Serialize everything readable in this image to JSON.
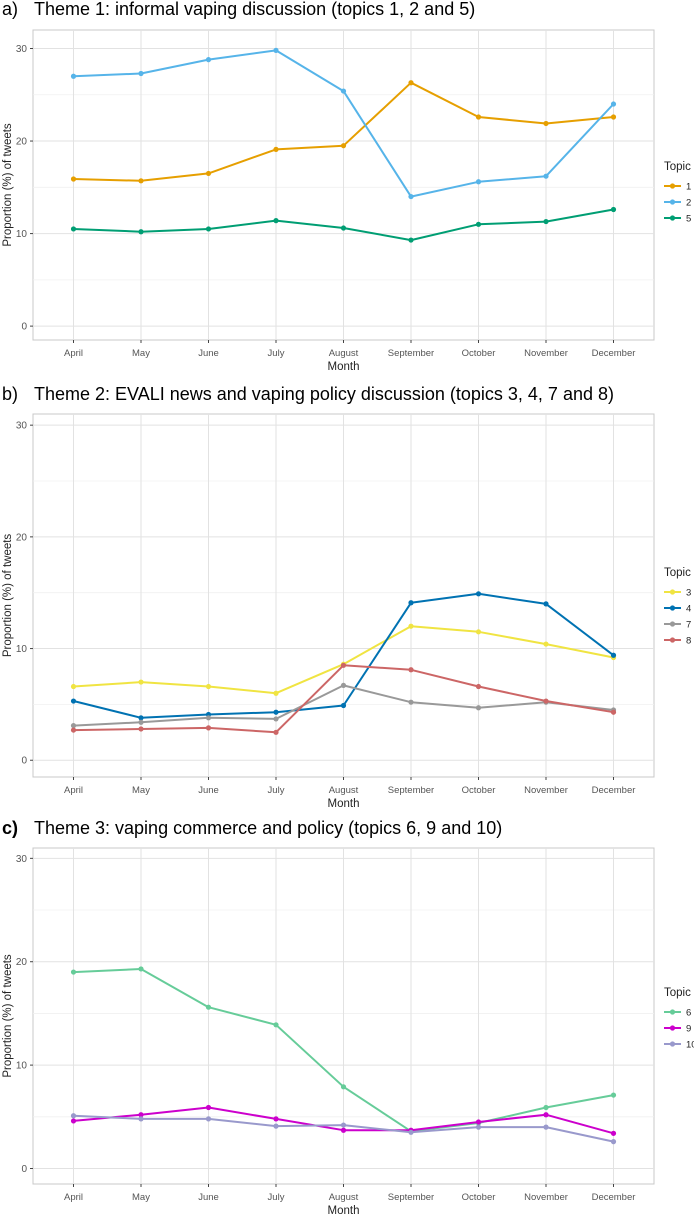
{
  "chart_data": [
    {
      "type": "line",
      "panel_label": "a)",
      "title": "Theme 1: informal vaping discussion (topics 1, 2 and 5)",
      "xlabel": "Month",
      "ylabel": "Proportion (%) of tweets",
      "categories": [
        "April",
        "May",
        "June",
        "July",
        "August",
        "September",
        "October",
        "November",
        "December"
      ],
      "ylim": [
        -1.5,
        32
      ],
      "yticks": [
        0,
        10,
        20,
        30
      ],
      "grid": true,
      "legend_title": "Topic",
      "legend_position": "right",
      "series": [
        {
          "name": "1",
          "color": "#E69F00",
          "values": [
            15.9,
            15.7,
            16.5,
            19.1,
            19.5,
            26.3,
            22.6,
            21.9,
            22.6
          ]
        },
        {
          "name": "2",
          "color": "#56B4E9",
          "values": [
            27.0,
            27.3,
            28.8,
            29.8,
            25.4,
            14.0,
            15.6,
            16.2,
            24.0
          ]
        },
        {
          "name": "5",
          "color": "#009E73",
          "values": [
            10.5,
            10.2,
            10.5,
            11.4,
            10.6,
            9.3,
            11.0,
            11.3,
            12.6
          ]
        }
      ]
    },
    {
      "type": "line",
      "panel_label": "b)",
      "title": "Theme 2: EVALI news and vaping policy discussion (topics 3, 4, 7 and 8)",
      "xlabel": "Month",
      "ylabel": "Proportion (%) of tweets",
      "categories": [
        "April",
        "May",
        "June",
        "July",
        "August",
        "September",
        "October",
        "November",
        "December"
      ],
      "ylim": [
        -1.5,
        31
      ],
      "yticks": [
        0,
        10,
        20,
        30
      ],
      "grid": true,
      "legend_title": "Topic",
      "legend_position": "right",
      "series": [
        {
          "name": "3",
          "color": "#F0E442",
          "values": [
            6.6,
            7.0,
            6.6,
            6.0,
            8.6,
            12.0,
            11.5,
            10.4,
            9.2
          ]
        },
        {
          "name": "4",
          "color": "#0072B2",
          "values": [
            5.3,
            3.8,
            4.1,
            4.3,
            4.9,
            14.1,
            14.9,
            14.0,
            9.4
          ]
        },
        {
          "name": "7",
          "color": "#999999",
          "values": [
            3.1,
            3.4,
            3.8,
            3.7,
            6.7,
            5.2,
            4.7,
            5.2,
            4.5
          ]
        },
        {
          "name": "8",
          "color": "#CC6666",
          "values": [
            2.7,
            2.8,
            2.9,
            2.5,
            8.5,
            8.1,
            6.6,
            5.3,
            4.3
          ]
        }
      ]
    },
    {
      "type": "line",
      "panel_label": "c)",
      "title": "Theme 3: vaping commerce and policy (topics 6, 9 and 10)",
      "xlabel": "Month",
      "ylabel": "Proportion (%) of tweets",
      "categories": [
        "April",
        "May",
        "June",
        "July",
        "August",
        "September",
        "October",
        "November",
        "December"
      ],
      "ylim": [
        -1.5,
        31
      ],
      "yticks": [
        0,
        10,
        20,
        30
      ],
      "grid": true,
      "legend_title": "Topic",
      "legend_position": "right",
      "series": [
        {
          "name": "6",
          "color": "#66CC99",
          "values": [
            19.0,
            19.3,
            15.6,
            13.9,
            7.9,
            3.6,
            4.4,
            5.9,
            7.1
          ]
        },
        {
          "name": "9",
          "color": "#CC00CC",
          "values": [
            4.6,
            5.2,
            5.9,
            4.8,
            3.7,
            3.7,
            4.5,
            5.2,
            3.4
          ]
        },
        {
          "name": "10",
          "color": "#9999CC",
          "values": [
            5.1,
            4.8,
            4.8,
            4.1,
            4.2,
            3.5,
            4.0,
            4.0,
            2.6
          ]
        }
      ]
    }
  ]
}
